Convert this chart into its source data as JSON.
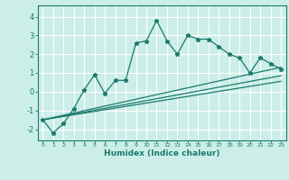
{
  "xlabel": "Humidex (Indice chaleur)",
  "background_color": "#cceee8",
  "grid_color": "#ffffff",
  "line_color": "#1a7a6e",
  "xlim": [
    -0.5,
    23.5
  ],
  "ylim": [
    -2.6,
    4.6
  ],
  "yticks": [
    -2,
    -1,
    0,
    1,
    2,
    3,
    4
  ],
  "xticks": [
    0,
    1,
    2,
    3,
    4,
    5,
    6,
    7,
    8,
    9,
    10,
    11,
    12,
    13,
    14,
    15,
    16,
    17,
    18,
    19,
    20,
    21,
    22,
    23
  ],
  "main_x": [
    0,
    1,
    2,
    3,
    4,
    5,
    6,
    7,
    8,
    9,
    10,
    11,
    12,
    13,
    14,
    15,
    16,
    17,
    18,
    19,
    20,
    21,
    22,
    23
  ],
  "main_y": [
    -1.5,
    -2.2,
    -1.7,
    -0.9,
    0.1,
    0.9,
    -0.1,
    0.6,
    0.6,
    2.6,
    2.7,
    3.8,
    2.7,
    2.0,
    3.0,
    2.8,
    2.8,
    2.4,
    2.0,
    1.8,
    1.0,
    1.8,
    1.5,
    1.2
  ],
  "line1_x": [
    0,
    23
  ],
  "line1_y": [
    -1.5,
    1.3
  ],
  "line2_x": [
    0,
    23
  ],
  "line2_y": [
    -1.5,
    0.85
  ],
  "line3_x": [
    0,
    23
  ],
  "line3_y": [
    -1.5,
    0.55
  ]
}
